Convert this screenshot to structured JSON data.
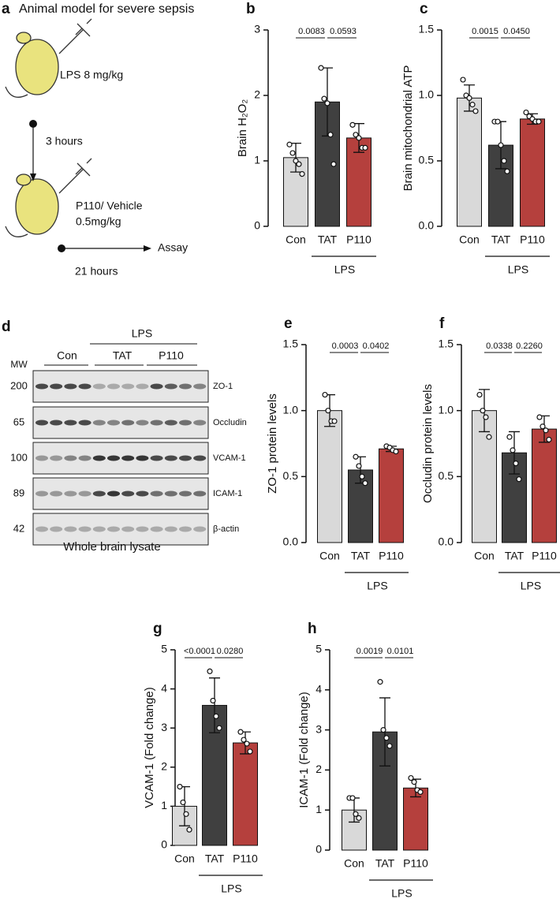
{
  "panel_a": {
    "letter": "a",
    "title": "Animal model for severe sepsis",
    "dose1": "LPS 8 mg/kg",
    "wait": "3 hours",
    "drug": "P110/ Vehicle",
    "dose2": "0.5mg/kg",
    "assay": "Assay",
    "duration": "21 hours"
  },
  "panel_d": {
    "letter": "d",
    "group": "LPS",
    "lanes": [
      "Con",
      "TAT",
      "P110"
    ],
    "mw_title": "MW",
    "mw": [
      "200",
      "65",
      "100",
      "89",
      "42"
    ],
    "bands": [
      "ZO-1",
      "Occludin",
      "VCAM-1",
      "ICAM-1",
      "β-actin"
    ],
    "caption": "Whole brain lysate"
  },
  "chart_data": [
    {
      "type": "bar",
      "panel": "b",
      "ylabel": "Brain H₂O₂",
      "categories": [
        "Con",
        "TAT",
        "P110"
      ],
      "group_label": "LPS",
      "colors": [
        "#d9d9d9",
        "#404040",
        "#b5403d"
      ],
      "values": [
        1.05,
        1.9,
        1.35
      ],
      "errors": [
        0.22,
        0.52,
        0.22
      ],
      "points": [
        [
          1.25,
          1.12,
          1.0,
          0.95,
          0.8
        ],
        [
          2.42,
          1.95,
          1.88,
          1.4,
          0.95
        ],
        [
          1.55,
          1.4,
          1.35,
          1.2,
          1.2
        ]
      ],
      "p_values": [
        "0.0083",
        "0.0593"
      ],
      "ylim": [
        0,
        3
      ],
      "yticks": [
        0,
        1,
        2,
        3
      ]
    },
    {
      "type": "bar",
      "panel": "c",
      "ylabel": "Brain mitochondrial ATP",
      "categories": [
        "Con",
        "TAT",
        "P110"
      ],
      "group_label": "LPS",
      "colors": [
        "#d9d9d9",
        "#404040",
        "#b5403d"
      ],
      "values": [
        0.98,
        0.62,
        0.82
      ],
      "errors": [
        0.1,
        0.18,
        0.04
      ],
      "points": [
        [
          1.12,
          1.0,
          0.98,
          0.93,
          0.88
        ],
        [
          0.8,
          0.8,
          0.62,
          0.5,
          0.42
        ],
        [
          0.87,
          0.84,
          0.82,
          0.8,
          0.8
        ]
      ],
      "p_values": [
        "0.0015",
        "0.0450"
      ],
      "ylim": [
        0,
        1.5
      ],
      "yticks": [
        {
          "value": 0,
          "label": "0.0"
        },
        0.5,
        {
          "value": 1,
          "label": "1.0"
        },
        1.5
      ]
    },
    {
      "type": "bar",
      "panel": "e",
      "ylabel": "ZO-1 protein levels",
      "categories": [
        "Con",
        "TAT",
        "P110"
      ],
      "group_label": "LPS",
      "colors": [
        "#d9d9d9",
        "#404040",
        "#b5403d"
      ],
      "values": [
        1.0,
        0.55,
        0.71
      ],
      "errors": [
        0.12,
        0.1,
        0.02
      ],
      "points": [
        [
          1.12,
          1.0,
          0.92,
          0.92
        ],
        [
          0.65,
          0.58,
          0.5,
          0.45
        ],
        [
          0.73,
          0.72,
          0.7,
          0.69
        ]
      ],
      "p_values": [
        "0.0003",
        "0.0402"
      ],
      "ylim": [
        0,
        1.5
      ],
      "yticks": [
        {
          "value": 0,
          "label": "0.0"
        },
        0.5,
        {
          "value": 1,
          "label": "1.0"
        },
        1.5
      ]
    },
    {
      "type": "bar",
      "panel": "f",
      "ylabel": "Occludin protein levels",
      "categories": [
        "Con",
        "TAT",
        "P110"
      ],
      "group_label": "LPS",
      "colors": [
        "#d9d9d9",
        "#404040",
        "#b5403d"
      ],
      "values": [
        1.0,
        0.68,
        0.86
      ],
      "errors": [
        0.16,
        0.16,
        0.1
      ],
      "points": [
        [
          1.12,
          1.0,
          0.95,
          0.8
        ],
        [
          0.8,
          0.7,
          0.6,
          0.48
        ],
        [
          0.95,
          0.88,
          0.85,
          0.78
        ]
      ],
      "p_values": [
        "0.0338",
        "0.2260"
      ],
      "ylim": [
        0,
        1.5
      ],
      "yticks": [
        {
          "value": 0,
          "label": "0.0"
        },
        0.5,
        {
          "value": 1,
          "label": "1.0"
        },
        1.5
      ]
    },
    {
      "type": "bar",
      "panel": "g",
      "ylabel": "VCAM-1 (Fold change)",
      "categories": [
        "Con",
        "TAT",
        "P110"
      ],
      "group_label": "LPS",
      "colors": [
        "#d9d9d9",
        "#404040",
        "#b5403d"
      ],
      "values": [
        1.0,
        3.58,
        2.62
      ],
      "errors": [
        0.5,
        0.7,
        0.28
      ],
      "points": [
        [
          1.5,
          1.1,
          0.8,
          0.4
        ],
        [
          4.45,
          3.7,
          3.3,
          3.0
        ],
        [
          2.9,
          2.7,
          2.6,
          2.4
        ]
      ],
      "p_values": [
        "<0.0001",
        "0.0280"
      ],
      "ylim": [
        0,
        5
      ],
      "yticks": [
        0,
        1,
        2,
        3,
        4,
        5
      ]
    },
    {
      "type": "bar",
      "panel": "h",
      "ylabel": "ICAM-1 (Fold change)",
      "categories": [
        "Con",
        "TAT",
        "P110"
      ],
      "group_label": "LPS",
      "colors": [
        "#d9d9d9",
        "#404040",
        "#b5403d"
      ],
      "values": [
        1.0,
        2.95,
        1.55
      ],
      "errors": [
        0.3,
        0.85,
        0.22
      ],
      "points": [
        [
          1.3,
          1.3,
          0.9,
          0.8
        ],
        [
          4.2,
          3.0,
          2.8,
          2.6
        ],
        [
          1.8,
          1.7,
          1.5,
          1.45
        ]
      ],
      "p_values": [
        "0.0019",
        "0.0101"
      ],
      "ylim": [
        0,
        5
      ],
      "yticks": [
        0,
        1,
        2,
        3,
        4,
        5
      ]
    }
  ]
}
